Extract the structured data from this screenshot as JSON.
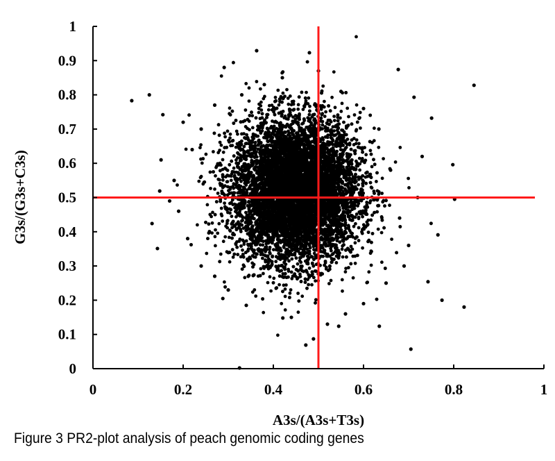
{
  "caption": "Figure 3 PR2-plot analysis of peach genomic coding genes",
  "chart_data": {
    "type": "scatter",
    "xlabel": "A3s/(A3s+T3s)",
    "ylabel": "G3s/(G3s+C3s)",
    "xlim": [
      0,
      1
    ],
    "ylim": [
      0,
      1
    ],
    "xticks": [
      "0",
      "0.2",
      "0.4",
      "0.6",
      "0.8",
      "1"
    ],
    "yticks": [
      "0",
      "0.1",
      "0.2",
      "0.3",
      "0.4",
      "0.5",
      "0.6",
      "0.7",
      "0.8",
      "0.9",
      "1"
    ],
    "grid": false,
    "legend": "none",
    "point_color": "#000000",
    "reference_line_color": "#ff1a1a",
    "reference_lines": {
      "x": 0.5,
      "y": 0.5
    },
    "dense_cluster": {
      "center": [
        0.45,
        0.52
      ],
      "sd": [
        0.07,
        0.105
      ],
      "n": 9000
    },
    "points": [
      [
        0.086,
        0.783
      ],
      [
        0.363,
        0.929
      ],
      [
        0.48,
        0.923
      ],
      [
        0.677,
        0.874
      ],
      [
        0.291,
        0.88
      ],
      [
        0.845,
        0.828
      ],
      [
        0.798,
        0.596
      ],
      [
        0.802,
        0.495
      ],
      [
        0.765,
        0.391
      ],
      [
        0.743,
        0.254
      ],
      [
        0.774,
        0.2
      ],
      [
        0.823,
        0.18
      ],
      [
        0.705,
        0.057
      ],
      [
        0.472,
        0.069
      ],
      [
        0.489,
        0.087
      ],
      [
        0.125,
        0.8
      ],
      [
        0.155,
        0.742
      ],
      [
        0.151,
        0.61
      ],
      [
        0.131,
        0.424
      ],
      [
        0.143,
        0.351
      ],
      [
        0.148,
        0.519
      ],
      [
        0.635,
        0.124
      ],
      [
        0.545,
        0.124
      ],
      [
        0.325,
        0.002
      ],
      [
        0.421,
        0.148
      ],
      [
        0.34,
        0.185
      ],
      [
        0.288,
        0.205
      ],
      [
        0.712,
        0.793
      ],
      [
        0.634,
        0.7
      ],
      [
        0.751,
        0.732
      ],
      [
        0.2,
        0.72
      ],
      [
        0.22,
        0.64
      ],
      [
        0.19,
        0.46
      ],
      [
        0.21,
        0.38
      ],
      [
        0.24,
        0.3
      ],
      [
        0.27,
        0.27
      ],
      [
        0.3,
        0.23
      ],
      [
        0.66,
        0.58
      ],
      [
        0.68,
        0.44
      ],
      [
        0.7,
        0.36
      ],
      [
        0.69,
        0.3
      ],
      [
        0.65,
        0.25
      ],
      [
        0.6,
        0.19
      ],
      [
        0.56,
        0.16
      ],
      [
        0.52,
        0.13
      ],
      [
        0.44,
        0.15
      ],
      [
        0.38,
        0.83
      ],
      [
        0.42,
        0.85
      ],
      [
        0.5,
        0.87
      ],
      [
        0.55,
        0.81
      ],
      [
        0.6,
        0.76
      ],
      [
        0.33,
        0.8
      ],
      [
        0.27,
        0.77
      ],
      [
        0.24,
        0.7
      ],
      [
        0.72,
        0.5
      ],
      [
        0.73,
        0.62
      ],
      [
        0.18,
        0.55
      ],
      [
        0.17,
        0.49
      ]
    ]
  }
}
